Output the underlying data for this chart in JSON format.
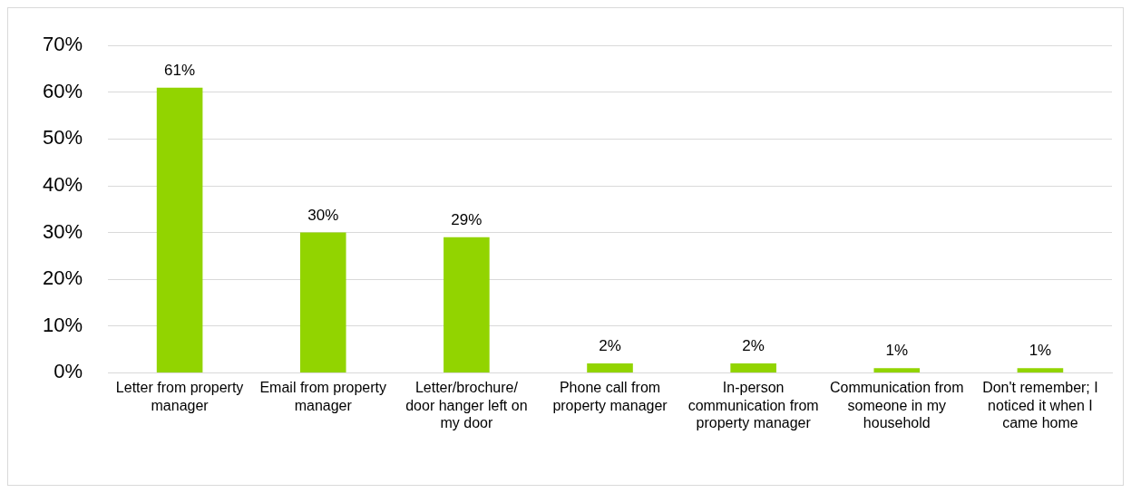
{
  "chart_data": {
    "type": "bar",
    "categories": [
      "Letter from property manager",
      "Email from property manager",
      "Letter/brochure/ door hanger left on my door",
      "Phone call from property manager",
      "In-person communication from property manager",
      "Communication from someone in my household",
      "Don't remember; I noticed it when I came home"
    ],
    "values": [
      61,
      30,
      29,
      2,
      2,
      1,
      1
    ],
    "value_labels": [
      "61%",
      "30%",
      "29%",
      "2%",
      "2%",
      "1%",
      "1%"
    ],
    "color": "#92d400",
    "ylim": [
      0,
      70
    ],
    "yticks": [
      {
        "value": 0,
        "label": "0%"
      },
      {
        "value": 10,
        "label": "10%"
      },
      {
        "value": 20,
        "label": "20%"
      },
      {
        "value": 30,
        "label": "30%"
      },
      {
        "value": 40,
        "label": "40%"
      },
      {
        "value": 50,
        "label": "50%"
      },
      {
        "value": 60,
        "label": "60%"
      },
      {
        "value": 70,
        "label": "70%"
      }
    ],
    "grid": "y",
    "legend": false
  }
}
